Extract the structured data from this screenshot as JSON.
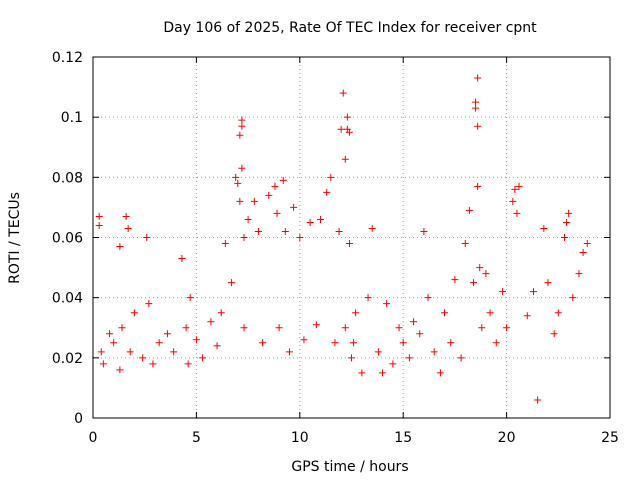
{
  "chart_data": {
    "type": "scatter",
    "title": "Day 106 of 2025, Rate Of TEC Index for receiver cpnt",
    "xlabel": "GPS time / hours",
    "ylabel": "ROTI / TECUs",
    "xlim": [
      0,
      25
    ],
    "ylim": [
      0,
      0.12
    ],
    "xticks": [
      "0",
      "5",
      "10",
      "15",
      "20",
      "25"
    ],
    "yticks": [
      "0",
      "0.02",
      "0.04",
      "0.06",
      "0.08",
      "0.1",
      "0.12"
    ],
    "grid": true,
    "marker": "plus",
    "color": "#ff0000",
    "series": [
      {
        "x": [
          0.3,
          0.3,
          0.4,
          0.5,
          0.8,
          1.0,
          1.3,
          1.3,
          1.4,
          1.6,
          1.7,
          1.8,
          2.0,
          2.4,
          2.6,
          2.7,
          2.9,
          3.2,
          3.6,
          3.9,
          4.3,
          4.5,
          4.6,
          4.7,
          5.0,
          5.3,
          5.7,
          6.0,
          6.2,
          6.4,
          6.7,
          6.9,
          7.0,
          7.1,
          7.1,
          7.2,
          7.2,
          7.2,
          7.3,
          7.3,
          7.5,
          7.8,
          8.0,
          8.2,
          8.5,
          8.8,
          8.9,
          9.0,
          9.2,
          9.3,
          9.5,
          9.7,
          10.0,
          10.2,
          10.5,
          10.8,
          11.0,
          11.3,
          11.5,
          11.7,
          11.9,
          12.0,
          12.1,
          12.2,
          12.2,
          12.3,
          12.3,
          12.4,
          12.4,
          12.5,
          12.6,
          12.7,
          13.0,
          13.3,
          13.5,
          13.8,
          14.0,
          14.2,
          14.5,
          14.8,
          15.0,
          15.3,
          15.5,
          15.8,
          16.0,
          16.2,
          16.5,
          16.8,
          17.0,
          17.3,
          17.5,
          17.8,
          18.0,
          18.2,
          18.4,
          18.5,
          18.5,
          18.6,
          18.6,
          18.6,
          18.7,
          18.8,
          19.0,
          19.2,
          19.5,
          19.8,
          20.0,
          20.3,
          20.4,
          20.5,
          20.6,
          21.0,
          21.3,
          21.5,
          21.8,
          22.0,
          22.3,
          22.5,
          22.8,
          22.9,
          23.0,
          23.2,
          23.5,
          23.7,
          23.9
        ],
        "y": [
          0.067,
          0.064,
          0.022,
          0.018,
          0.028,
          0.025,
          0.057,
          0.016,
          0.03,
          0.067,
          0.063,
          0.022,
          0.035,
          0.02,
          0.06,
          0.038,
          0.018,
          0.025,
          0.028,
          0.022,
          0.053,
          0.03,
          0.018,
          0.04,
          0.026,
          0.02,
          0.032,
          0.024,
          0.035,
          0.058,
          0.045,
          0.08,
          0.078,
          0.072,
          0.094,
          0.097,
          0.099,
          0.083,
          0.06,
          0.03,
          0.066,
          0.072,
          0.062,
          0.025,
          0.074,
          0.077,
          0.068,
          0.03,
          0.079,
          0.062,
          0.022,
          0.07,
          0.06,
          0.026,
          0.065,
          0.031,
          0.066,
          0.075,
          0.08,
          0.025,
          0.062,
          0.096,
          0.108,
          0.086,
          0.03,
          0.096,
          0.1,
          0.095,
          0.058,
          0.02,
          0.025,
          0.035,
          0.015,
          0.04,
          0.063,
          0.022,
          0.015,
          0.038,
          0.018,
          0.03,
          0.025,
          0.02,
          0.032,
          0.028,
          0.062,
          0.04,
          0.022,
          0.015,
          0.035,
          0.025,
          0.046,
          0.02,
          0.058,
          0.069,
          0.045,
          0.103,
          0.105,
          0.113,
          0.097,
          0.077,
          0.05,
          0.03,
          0.048,
          0.035,
          0.025,
          0.042,
          0.03,
          0.072,
          0.076,
          0.068,
          0.077,
          0.034,
          0.042,
          0.006,
          0.063,
          0.045,
          0.028,
          0.035,
          0.06,
          0.065,
          0.068,
          0.04,
          0.048,
          0.055,
          0.058
        ]
      }
    ]
  }
}
